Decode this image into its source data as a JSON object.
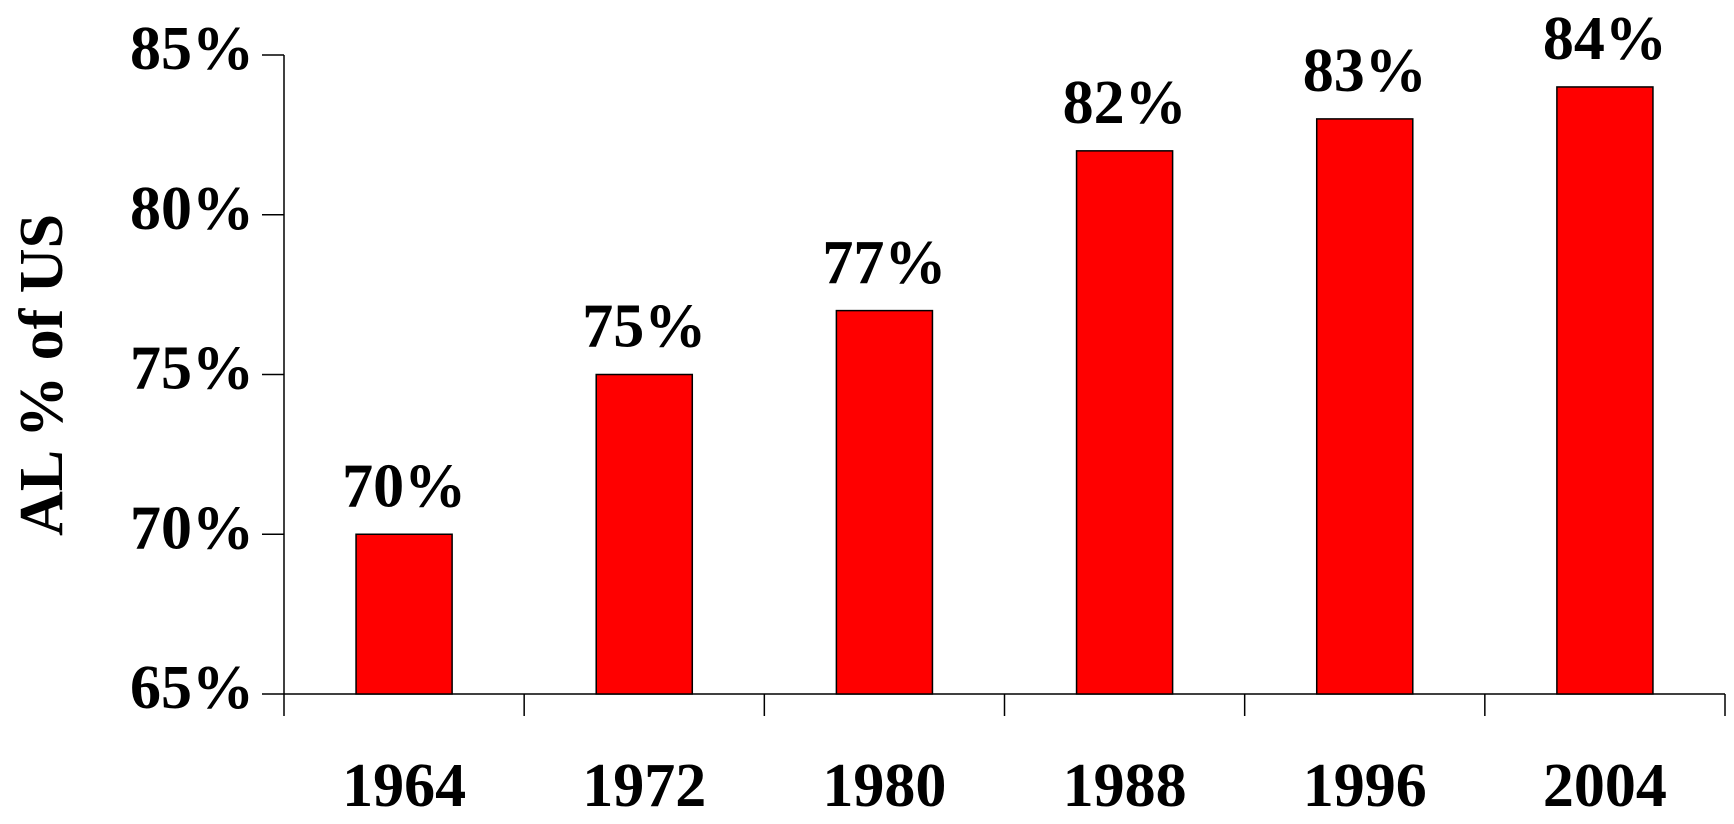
{
  "chart_data": {
    "type": "bar",
    "y_label": "AL % of US",
    "categories": [
      "1964",
      "1972",
      "1980",
      "1988",
      "1996",
      "2004"
    ],
    "values": [
      70,
      75,
      77,
      82,
      83,
      84
    ],
    "value_labels": [
      "70%",
      "75%",
      "77%",
      "82%",
      "83%",
      "84%"
    ],
    "color": "#ff0000",
    "ylim": [
      65,
      85
    ],
    "yticks": [
      {
        "value": 65,
        "label": "65%"
      },
      {
        "value": 70,
        "label": "70%"
      },
      {
        "value": 75,
        "label": "75%"
      },
      {
        "value": 80,
        "label": "80%"
      },
      {
        "value": 85,
        "label": "85%"
      }
    ]
  }
}
